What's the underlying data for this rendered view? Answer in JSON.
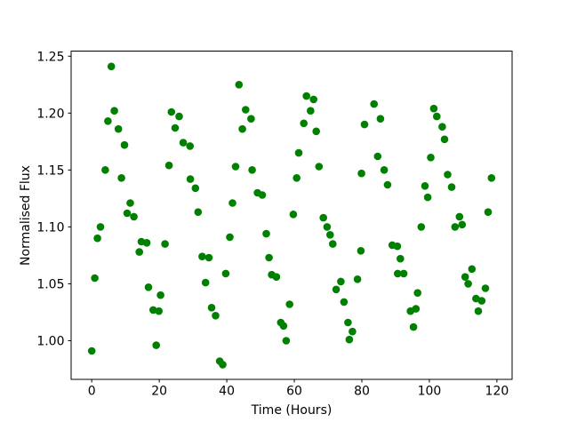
{
  "figure": {
    "background_color": "#ffffff",
    "text_color": "#000000",
    "title": ""
  },
  "chart_data": {
    "type": "scatter",
    "title": "",
    "xlabel": "Time (Hours)",
    "ylabel": "Normalised Flux",
    "xlim": [
      -6.1,
      124.5
    ],
    "ylim": [
      0.966,
      1.2545
    ],
    "xticks": [
      0,
      20,
      40,
      60,
      80,
      100,
      120
    ],
    "xtick_labels": [
      "0",
      "20",
      "40",
      "60",
      "80",
      "100",
      "120"
    ],
    "yticks": [
      1.0,
      1.05,
      1.1,
      1.15,
      1.2,
      1.25
    ],
    "ytick_labels": [
      "1.00",
      "1.05",
      "1.10",
      "1.15",
      "1.20",
      "1.25"
    ],
    "grid": false,
    "legend": null,
    "marker_color": "#008000",
    "series_name": "normalised-flux-vs-time",
    "points": [
      [
        0.0,
        0.991
      ],
      [
        0.9,
        1.055
      ],
      [
        1.7,
        1.09
      ],
      [
        2.6,
        1.1
      ],
      [
        4.0,
        1.15
      ],
      [
        4.8,
        1.193
      ],
      [
        5.8,
        1.241
      ],
      [
        6.7,
        1.202
      ],
      [
        7.9,
        1.186
      ],
      [
        8.8,
        1.143
      ],
      [
        9.7,
        1.172
      ],
      [
        10.5,
        1.112
      ],
      [
        11.4,
        1.121
      ],
      [
        12.5,
        1.109
      ],
      [
        14.1,
        1.078
      ],
      [
        14.7,
        1.087
      ],
      [
        16.3,
        1.086
      ],
      [
        16.8,
        1.047
      ],
      [
        18.2,
        1.027
      ],
      [
        19.1,
        0.996
      ],
      [
        19.9,
        1.026
      ],
      [
        20.4,
        1.04
      ],
      [
        21.7,
        1.085
      ],
      [
        22.9,
        1.154
      ],
      [
        23.6,
        1.201
      ],
      [
        24.7,
        1.187
      ],
      [
        25.9,
        1.197
      ],
      [
        27.1,
        1.174
      ],
      [
        29.1,
        1.171
      ],
      [
        29.2,
        1.142
      ],
      [
        30.7,
        1.134
      ],
      [
        31.5,
        1.113
      ],
      [
        32.7,
        1.074
      ],
      [
        33.7,
        1.051
      ],
      [
        34.7,
        1.073
      ],
      [
        35.5,
        1.029
      ],
      [
        36.7,
        1.022
      ],
      [
        37.9,
        0.982
      ],
      [
        38.8,
        0.979
      ],
      [
        39.7,
        1.059
      ],
      [
        40.9,
        1.091
      ],
      [
        41.7,
        1.121
      ],
      [
        42.6,
        1.153
      ],
      [
        43.6,
        1.225
      ],
      [
        44.6,
        1.186
      ],
      [
        45.6,
        1.203
      ],
      [
        47.2,
        1.195
      ],
      [
        47.5,
        1.15
      ],
      [
        49.1,
        1.13
      ],
      [
        50.5,
        1.128
      ],
      [
        51.7,
        1.094
      ],
      [
        52.5,
        1.073
      ],
      [
        53.3,
        1.058
      ],
      [
        54.7,
        1.056
      ],
      [
        56.0,
        1.016
      ],
      [
        56.8,
        1.013
      ],
      [
        57.6,
        1.0
      ],
      [
        58.6,
        1.032
      ],
      [
        59.7,
        1.111
      ],
      [
        60.7,
        1.143
      ],
      [
        61.3,
        1.165
      ],
      [
        62.8,
        1.191
      ],
      [
        63.6,
        1.215
      ],
      [
        64.8,
        1.202
      ],
      [
        65.7,
        1.212
      ],
      [
        66.5,
        1.184
      ],
      [
        67.3,
        1.153
      ],
      [
        68.6,
        1.108
      ],
      [
        69.7,
        1.1
      ],
      [
        70.6,
        1.093
      ],
      [
        71.4,
        1.085
      ],
      [
        72.4,
        1.045
      ],
      [
        73.8,
        1.052
      ],
      [
        74.7,
        1.034
      ],
      [
        75.9,
        1.016
      ],
      [
        76.3,
        1.001
      ],
      [
        77.2,
        1.008
      ],
      [
        78.7,
        1.054
      ],
      [
        79.7,
        1.079
      ],
      [
        79.9,
        1.147
      ],
      [
        80.8,
        1.19
      ],
      [
        83.6,
        1.208
      ],
      [
        84.7,
        1.162
      ],
      [
        85.5,
        1.195
      ],
      [
        86.6,
        1.15
      ],
      [
        87.6,
        1.137
      ],
      [
        89.0,
        1.084
      ],
      [
        90.5,
        1.083
      ],
      [
        90.6,
        1.059
      ],
      [
        91.4,
        1.072
      ],
      [
        92.4,
        1.059
      ],
      [
        94.4,
        1.026
      ],
      [
        95.3,
        1.012
      ],
      [
        96.0,
        1.028
      ],
      [
        96.5,
        1.042
      ],
      [
        97.6,
        1.1
      ],
      [
        98.7,
        1.136
      ],
      [
        99.5,
        1.126
      ],
      [
        100.4,
        1.161
      ],
      [
        101.3,
        1.204
      ],
      [
        102.2,
        1.197
      ],
      [
        103.8,
        1.188
      ],
      [
        104.5,
        1.177
      ],
      [
        105.4,
        1.146
      ],
      [
        106.6,
        1.135
      ],
      [
        107.6,
        1.1
      ],
      [
        108.9,
        1.109
      ],
      [
        109.7,
        1.102
      ],
      [
        110.6,
        1.056
      ],
      [
        111.5,
        1.05
      ],
      [
        112.6,
        1.063
      ],
      [
        113.8,
        1.037
      ],
      [
        114.5,
        1.026
      ],
      [
        115.5,
        1.035
      ],
      [
        116.6,
        1.046
      ],
      [
        117.4,
        1.113
      ],
      [
        118.4,
        1.143
      ]
    ]
  }
}
